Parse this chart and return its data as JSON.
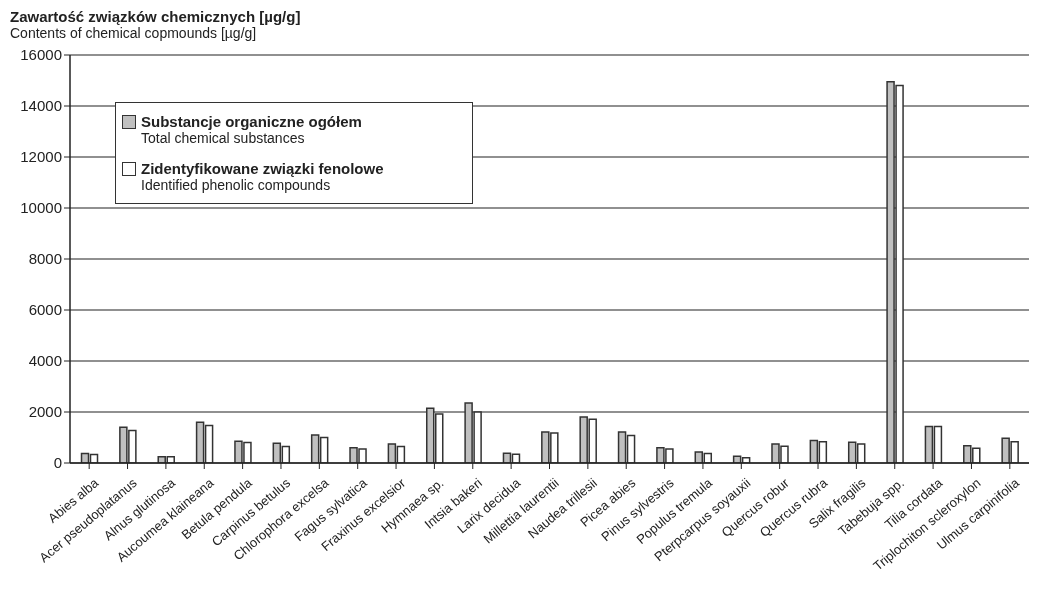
{
  "chart_data": {
    "type": "bar",
    "title": "Zawartość związków chemicznych  [µg/g]",
    "subtitle": "Contents of chemical copmounds [µg/g]",
    "categories": [
      "Abies alba",
      "Acer pseudoplatanus",
      "Alnus glutinosa",
      "Aucoumea klaineana",
      "Betula pendula",
      "Carpinus betulus",
      "Chlorophora excelsa",
      "Fagus sylvatica",
      "Fraxinus excelsior",
      "Hymnaea sp.",
      "Intsia bakeri",
      "Larix decidua",
      "Millettia laurentii",
      "Naudea trillesii",
      "Picea abies",
      "Pinus sylvestris",
      "Populus tremula",
      "Pterpcarpus soyauxii",
      "Quercus robur",
      "Quercus rubra",
      "Salix fragilis",
      "Tabebuja spp.",
      "Tilia cordata",
      "Triplochiton scleroxylon",
      "Ulmus carpinifolia"
    ],
    "series": [
      {
        "name": "Substancje organiczne ogółem\nTotal chemical substances",
        "color": "#c0c0c0",
        "values": [
          370,
          1400,
          250,
          1600,
          850,
          770,
          1100,
          600,
          750,
          2150,
          2350,
          380,
          1220,
          1800,
          1220,
          600,
          430,
          260,
          750,
          880,
          810,
          14950,
          1430,
          680,
          970
        ]
      },
      {
        "name": "Zidentyfikowane związki fenolowe\nIdentified phenolic compounds",
        "color": "#ffffff",
        "values": [
          330,
          1270,
          250,
          1470,
          800,
          650,
          1000,
          550,
          650,
          1920,
          2000,
          340,
          1180,
          1720,
          1080,
          550,
          370,
          210,
          660,
          830,
          750,
          14800,
          1430,
          580,
          830
        ]
      }
    ],
    "ylim": [
      0,
      16000
    ],
    "yticks": [
      0,
      2000,
      4000,
      6000,
      8000,
      10000,
      12000,
      14000,
      16000
    ],
    "grid": "y",
    "legend": "top left"
  }
}
